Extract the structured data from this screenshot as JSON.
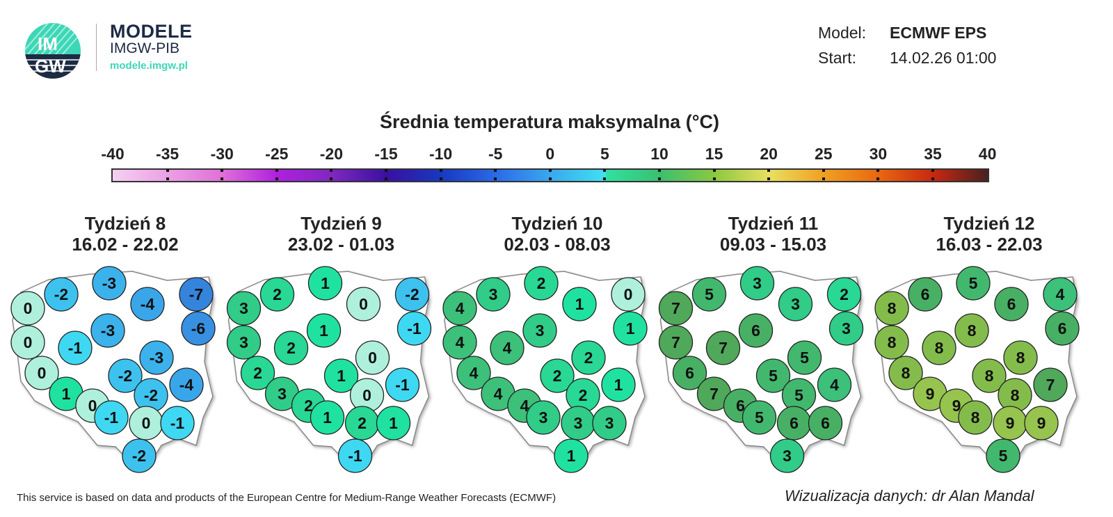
{
  "logo": {
    "title": "MODELE",
    "subtitle": "IMGW-PIB",
    "url": "modele.imgw.pl",
    "mark_text": "IMGW"
  },
  "meta": {
    "model_label": "Model:",
    "model_value": "ECMWF EPS",
    "start_label": "Start:",
    "start_value": "14.02.26 01:00"
  },
  "scale": {
    "title": "Średnia temperatura maksymalna (°C)",
    "ticks": [
      "-40",
      "-35",
      "-30",
      "-25",
      "-20",
      "-15",
      "-10",
      "-5",
      "0",
      "5",
      "10",
      "15",
      "20",
      "25",
      "30",
      "35",
      "40"
    ]
  },
  "weeks": [
    {
      "title": "Tydzień 8",
      "dates": "16.02 - 22.02",
      "values": [
        0,
        -2,
        -3,
        -4,
        -7,
        -6,
        0,
        -1,
        -3,
        0,
        1,
        0,
        -2,
        -3,
        -2,
        -4,
        -1,
        0,
        -1,
        -2
      ]
    },
    {
      "title": "Tydzień 9",
      "dates": "23.02 - 01.03",
      "values": [
        3,
        2,
        1,
        0,
        -2,
        -1,
        3,
        2,
        1,
        2,
        3,
        2,
        1,
        0,
        0,
        -1,
        1,
        2,
        1,
        -1
      ]
    },
    {
      "title": "Tydzień 10",
      "dates": "02.03 - 08.03",
      "values": [
        4,
        3,
        2,
        1,
        0,
        1,
        4,
        4,
        3,
        4,
        4,
        4,
        2,
        2,
        2,
        1,
        3,
        3,
        3,
        1
      ]
    },
    {
      "title": "Tydzień 11",
      "dates": "09.03 - 15.03",
      "values": [
        7,
        5,
        3,
        3,
        2,
        3,
        7,
        7,
        6,
        6,
        7,
        6,
        5,
        5,
        5,
        4,
        5,
        6,
        6,
        3
      ]
    },
    {
      "title": "Tydzień 12",
      "dates": "16.03 - 22.03",
      "values": [
        8,
        6,
        5,
        6,
        4,
        6,
        8,
        8,
        8,
        8,
        9,
        9,
        8,
        8,
        8,
        7,
        8,
        9,
        9,
        5
      ]
    }
  ],
  "footer": {
    "source": "This service is based on data and products of the European Centre for Medium-Range Weather Forecasts (ECMWF)",
    "credit": "Wizualizacja danych: dr Alan Mandal"
  }
}
